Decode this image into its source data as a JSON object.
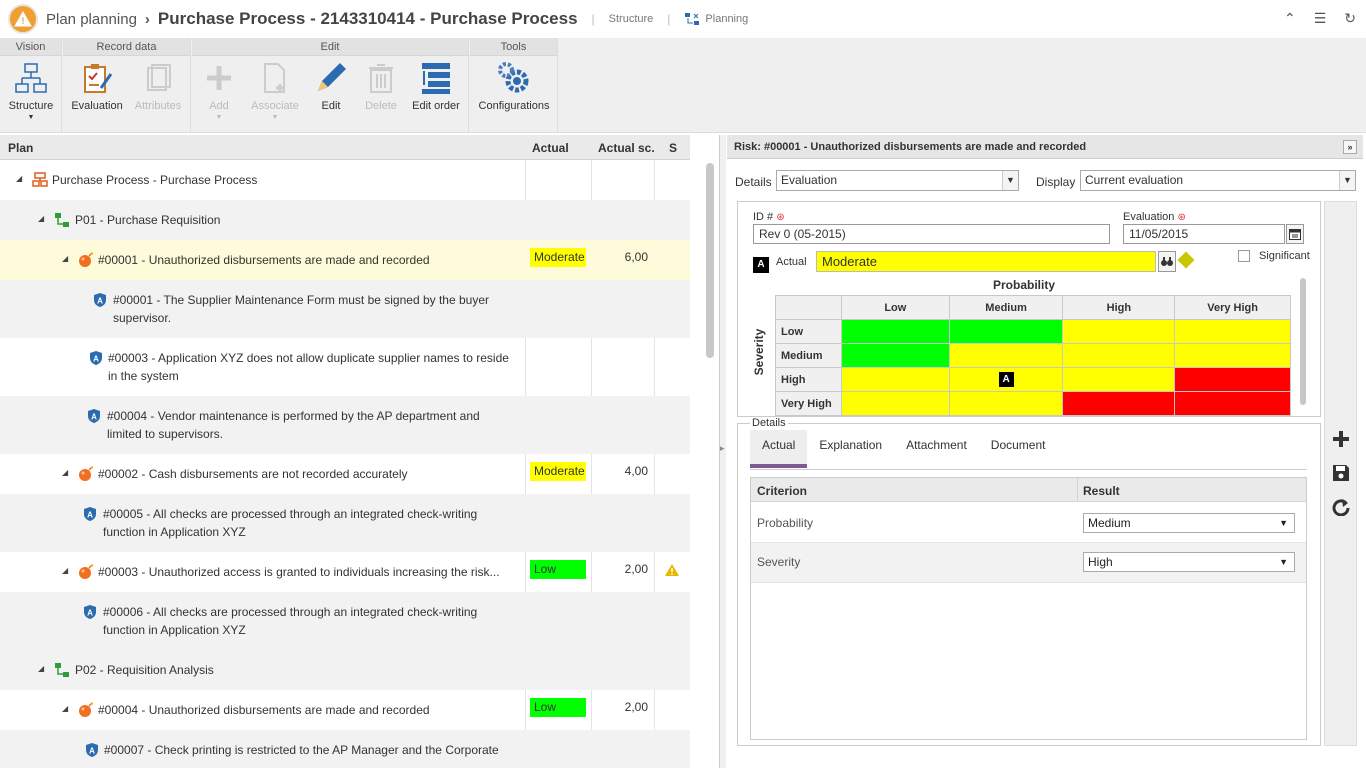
{
  "header": {
    "breadcrumb_root": "Plan planning",
    "title": "Purchase Process - 2143310414 - Purchase Process",
    "links": [
      "Structure",
      "Planning"
    ]
  },
  "ribbon": {
    "groups": [
      "Vision",
      "Record data",
      "Edit",
      "Tools"
    ],
    "buttons": {
      "structure": "Structure",
      "evaluation": "Evaluation",
      "attributes": "Attributes",
      "add": "Add",
      "associate": "Associate",
      "edit": "Edit",
      "delete": "Delete",
      "edit_order": "Edit order",
      "configurations": "Configurations"
    }
  },
  "tree": {
    "columns": [
      "Plan",
      "Actual",
      "Actual sc.",
      "S"
    ],
    "rows": [
      {
        "level": 0,
        "kind": "process",
        "text": "Purchase Process - Purchase Process"
      },
      {
        "level": 1,
        "kind": "activity",
        "text": "P01 - Purchase Requisition"
      },
      {
        "level": 2,
        "kind": "risk",
        "text": "#00001 - Unauthorized disbursements are made and recorded",
        "actual": "Moderate",
        "score": "6,00"
      },
      {
        "level": 3,
        "kind": "control",
        "line1": "#00001 - The Supplier Maintenance Form must be signed by the buyer",
        "line2": "supervisor."
      },
      {
        "level": 3,
        "kind": "control",
        "line1": "#00003 - Application XYZ does not allow duplicate supplier names to reside",
        "line2": "in the system"
      },
      {
        "level": 3,
        "kind": "control",
        "line1": "#00004 - Vendor maintenance is performed by the AP department and",
        "line2": "limited to supervisors."
      },
      {
        "level": 2,
        "kind": "risk",
        "text": "#00002 - Cash disbursements are not recorded accurately",
        "actual": "Moderate",
        "score": "4,00"
      },
      {
        "level": 3,
        "kind": "control",
        "line1": "#00005 - All checks are processed through an integrated check-writing",
        "line2": "function in Application XYZ"
      },
      {
        "level": 2,
        "kind": "risk",
        "text": "#00003 - Unauthorized access is granted to individuals increasing the risk...",
        "actual": "Low",
        "score": "2,00"
      },
      {
        "level": 3,
        "kind": "control",
        "line1": "#00006 - All checks are processed through an integrated check-writing",
        "line2": "function in Application XYZ"
      },
      {
        "level": 1,
        "kind": "activity",
        "text": "P02 - Requisition Analysis"
      },
      {
        "level": 2,
        "kind": "risk",
        "text": "#00004 - Unauthorized disbursements are made and recorded",
        "actual": "Low",
        "score": "2,00"
      },
      {
        "level": 3,
        "kind": "control",
        "line1": "#00007 - Check printing is restricted to the AP Manager and the Corporate",
        "line2": ""
      }
    ]
  },
  "detail": {
    "title": "Risk: #00001 - Unauthorized disbursements are made and recorded",
    "details_label": "Details",
    "details_value": "Evaluation",
    "display_label": "Display",
    "display_value": "Current evaluation",
    "id_label": "ID #",
    "id_value": "Rev 0 (05-2015)",
    "evaluation_label": "Evaluation",
    "evaluation_value": "11/05/2015",
    "significant_label": "Significant",
    "actual_marker": "A",
    "actual_label": "Actual",
    "actual_value": "Moderate",
    "matrix": {
      "x_title": "Probability",
      "y_title": "Severity",
      "columns": [
        "Low",
        "Medium",
        "High",
        "Very High"
      ],
      "rows": [
        "Low",
        "Medium",
        "High",
        "Very High"
      ],
      "colors": [
        [
          "#00ff00",
          "#00ff00",
          "#ffff00",
          "#ffff00"
        ],
        [
          "#00ff00",
          "#ffff00",
          "#ffff00",
          "#ffff00"
        ],
        [
          "#ffff00",
          "#ffff00",
          "#ffff00",
          "#ff0000"
        ],
        [
          "#ffff00",
          "#ffff00",
          "#ff0000",
          "#ff0000"
        ]
      ],
      "marker_row": 2,
      "marker_col": 1,
      "marker": "A"
    },
    "details_section": "Details",
    "tabs": [
      "Actual",
      "Explanation",
      "Attachment",
      "Document"
    ],
    "criteria_headers": [
      "Criterion",
      "Result"
    ],
    "criteria": [
      {
        "name": "Probability",
        "result": "Medium"
      },
      {
        "name": "Severity",
        "result": "High"
      }
    ]
  },
  "colors": {
    "moderate": "#ffff00",
    "low": "#00ff00",
    "accent_tab": "#7e5a93",
    "selected_row": "#fdfbd9"
  }
}
